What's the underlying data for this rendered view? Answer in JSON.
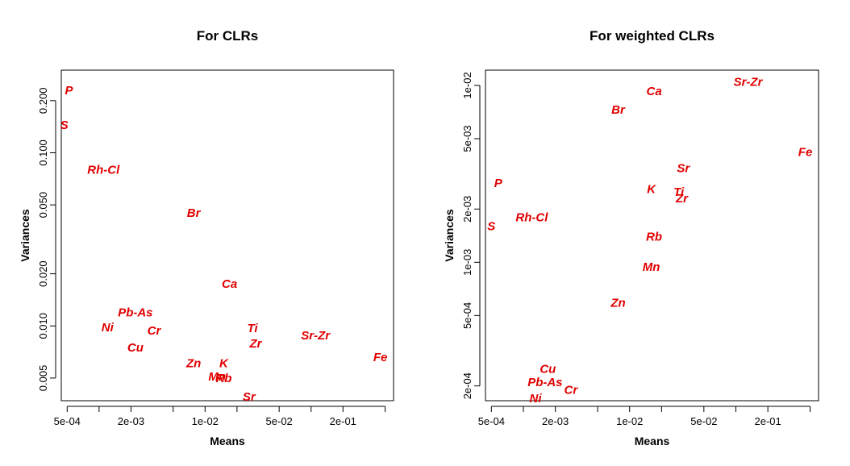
{
  "chart_data": [
    {
      "type": "scatter",
      "title": "For CLRs",
      "xlabel": "Means",
      "ylabel": "Variances",
      "x_scale": "log",
      "y_scale": "log",
      "xlim": [
        0.00044,
        0.6
      ],
      "ylim": [
        0.0037,
        0.3
      ],
      "x_ticks": [
        {
          "value": 0.0005,
          "label": "5e-04"
        },
        {
          "value": 0.001,
          "label": ""
        },
        {
          "value": 0.002,
          "label": "2e-03"
        },
        {
          "value": 0.005,
          "label": ""
        },
        {
          "value": 0.01,
          "label": "1e-02"
        },
        {
          "value": 0.02,
          "label": ""
        },
        {
          "value": 0.05,
          "label": "5e-02"
        },
        {
          "value": 0.1,
          "label": ""
        },
        {
          "value": 0.2,
          "label": "2e-01"
        },
        {
          "value": 0.5,
          "label": ""
        }
      ],
      "y_ticks": [
        {
          "value": 0.005,
          "label": "0.005"
        },
        {
          "value": 0.01,
          "label": "0.010"
        },
        {
          "value": 0.02,
          "label": "0.020"
        },
        {
          "value": 0.05,
          "label": "0.050"
        },
        {
          "value": 0.1,
          "label": "0.100"
        },
        {
          "value": 0.2,
          "label": "0.200"
        }
      ],
      "points": [
        {
          "label": "P",
          "x": 0.00052,
          "y": 0.23
        },
        {
          "label": "S",
          "x": 0.00047,
          "y": 0.145
        },
        {
          "label": "Rh-Cl",
          "x": 0.0011,
          "y": 0.08
        },
        {
          "label": "Br",
          "x": 0.0078,
          "y": 0.045
        },
        {
          "label": "Ca",
          "x": 0.017,
          "y": 0.0175
        },
        {
          "label": "Pb-As",
          "x": 0.0022,
          "y": 0.012
        },
        {
          "label": "Ni",
          "x": 0.0012,
          "y": 0.0098
        },
        {
          "label": "Cr",
          "x": 0.0033,
          "y": 0.0094
        },
        {
          "label": "Cu",
          "x": 0.0022,
          "y": 0.0075
        },
        {
          "label": "Ti",
          "x": 0.028,
          "y": 0.0097
        },
        {
          "label": "Zr",
          "x": 0.03,
          "y": 0.0079
        },
        {
          "label": "Sr-Zr",
          "x": 0.11,
          "y": 0.0088
        },
        {
          "label": "Fe",
          "x": 0.45,
          "y": 0.0066
        },
        {
          "label": "Zn",
          "x": 0.0078,
          "y": 0.0061
        },
        {
          "label": "K",
          "x": 0.015,
          "y": 0.0061
        },
        {
          "label": "Mn",
          "x": 0.013,
          "y": 0.0051
        },
        {
          "label": "Rb",
          "x": 0.015,
          "y": 0.005
        },
        {
          "label": "Sr",
          "x": 0.026,
          "y": 0.0039
        }
      ]
    },
    {
      "type": "scatter",
      "title": "For weighted CLRs",
      "xlabel": "Means",
      "ylabel": "Variances",
      "x_scale": "log",
      "y_scale": "log",
      "xlim": [
        0.00044,
        0.6
      ],
      "ylim": [
        0.000165,
        0.0122
      ],
      "x_ticks": [
        {
          "value": 0.0005,
          "label": "5e-04"
        },
        {
          "value": 0.001,
          "label": ""
        },
        {
          "value": 0.002,
          "label": "2e-03"
        },
        {
          "value": 0.005,
          "label": ""
        },
        {
          "value": 0.01,
          "label": "1e-02"
        },
        {
          "value": 0.02,
          "label": ""
        },
        {
          "value": 0.05,
          "label": "5e-02"
        },
        {
          "value": 0.1,
          "label": ""
        },
        {
          "value": 0.2,
          "label": "2e-01"
        },
        {
          "value": 0.5,
          "label": ""
        }
      ],
      "y_ticks": [
        {
          "value": 0.0002,
          "label": "2e-04"
        },
        {
          "value": 0.0005,
          "label": "5e-04"
        },
        {
          "value": 0.001,
          "label": "1e-03"
        },
        {
          "value": 0.002,
          "label": "2e-03"
        },
        {
          "value": 0.005,
          "label": "5e-03"
        },
        {
          "value": 0.01,
          "label": "1e-02"
        }
      ],
      "points": [
        {
          "label": "Sr-Zr",
          "x": 0.13,
          "y": 0.0105
        },
        {
          "label": "Ca",
          "x": 0.017,
          "y": 0.0093
        },
        {
          "label": "Br",
          "x": 0.0078,
          "y": 0.0073
        },
        {
          "label": "Fe",
          "x": 0.45,
          "y": 0.0042
        },
        {
          "label": "Sr",
          "x": 0.032,
          "y": 0.0034
        },
        {
          "label": "P",
          "x": 0.00058,
          "y": 0.0028
        },
        {
          "label": "K",
          "x": 0.016,
          "y": 0.0026
        },
        {
          "label": "Ti",
          "x": 0.029,
          "y": 0.0025
        },
        {
          "label": "Zr",
          "x": 0.031,
          "y": 0.0023
        },
        {
          "label": "Rh-Cl",
          "x": 0.0012,
          "y": 0.0018
        },
        {
          "label": "S",
          "x": 0.0005,
          "y": 0.0016
        },
        {
          "label": "Rb",
          "x": 0.017,
          "y": 0.0014
        },
        {
          "label": "Mn",
          "x": 0.016,
          "y": 0.00094
        },
        {
          "label": "Zn",
          "x": 0.0078,
          "y": 0.00059
        },
        {
          "label": "Cu",
          "x": 0.0017,
          "y": 0.00025
        },
        {
          "label": "Pb-As",
          "x": 0.0016,
          "y": 0.00021
        },
        {
          "label": "Cr",
          "x": 0.0028,
          "y": 0.00019
        },
        {
          "label": "Ni",
          "x": 0.0013,
          "y": 0.00017
        }
      ]
    }
  ]
}
